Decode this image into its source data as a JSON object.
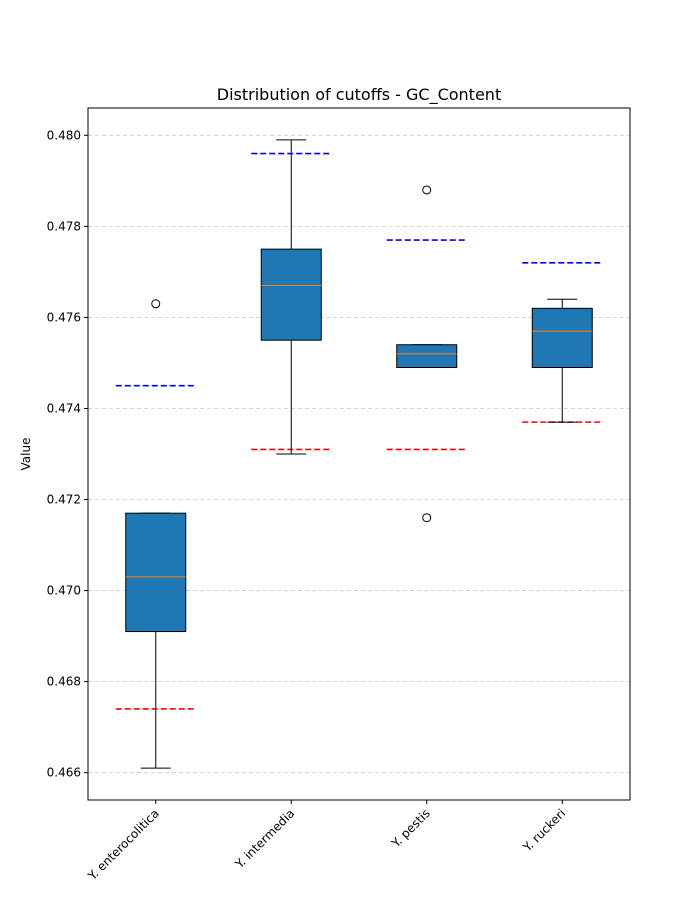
{
  "chart_data": {
    "type": "box",
    "title": "Distribution of cutoffs - GC_Content",
    "xlabel": "",
    "ylabel": "Value",
    "ylim": [
      0.4654,
      0.4806
    ],
    "yticks": [
      0.466,
      0.468,
      0.47,
      0.472,
      0.474,
      0.476,
      0.478,
      0.48
    ],
    "ytick_labels": [
      "0.466",
      "0.468",
      "0.470",
      "0.472",
      "0.474",
      "0.476",
      "0.478",
      "0.480"
    ],
    "grid": "y-dashed",
    "categories": [
      "Y. enterocolitica",
      "Y. intermedia",
      "Y. pestis",
      "Y. ruckeri"
    ],
    "boxes": [
      {
        "whisker_low": 0.4661,
        "q1": 0.4691,
        "median": 0.4703,
        "q3": 0.4717,
        "whisker_high": 0.4717,
        "outliers": [
          0.4763
        ]
      },
      {
        "whisker_low": 0.473,
        "q1": 0.4755,
        "median": 0.4767,
        "q3": 0.4775,
        "whisker_high": 0.4799,
        "outliers": []
      },
      {
        "whisker_low": 0.4749,
        "q1": 0.4749,
        "median": 0.4752,
        "q3": 0.4754,
        "whisker_high": 0.4754,
        "outliers": [
          0.4788,
          0.4716
        ]
      },
      {
        "whisker_low": 0.4737,
        "q1": 0.4749,
        "median": 0.4757,
        "q3": 0.4762,
        "whisker_high": 0.4764,
        "outliers": []
      }
    ],
    "upper_cutoffs": [
      0.4745,
      0.4796,
      0.4777,
      0.4772
    ],
    "lower_cutoffs": [
      0.4674,
      0.4731,
      0.4731,
      0.4737
    ],
    "colors": {
      "box_fill": "#1f77b4",
      "median": "#ff7f0e",
      "upper_cutoff": "#0000ff",
      "lower_cutoff": "#ff0000",
      "grid": "#cccccc"
    }
  }
}
